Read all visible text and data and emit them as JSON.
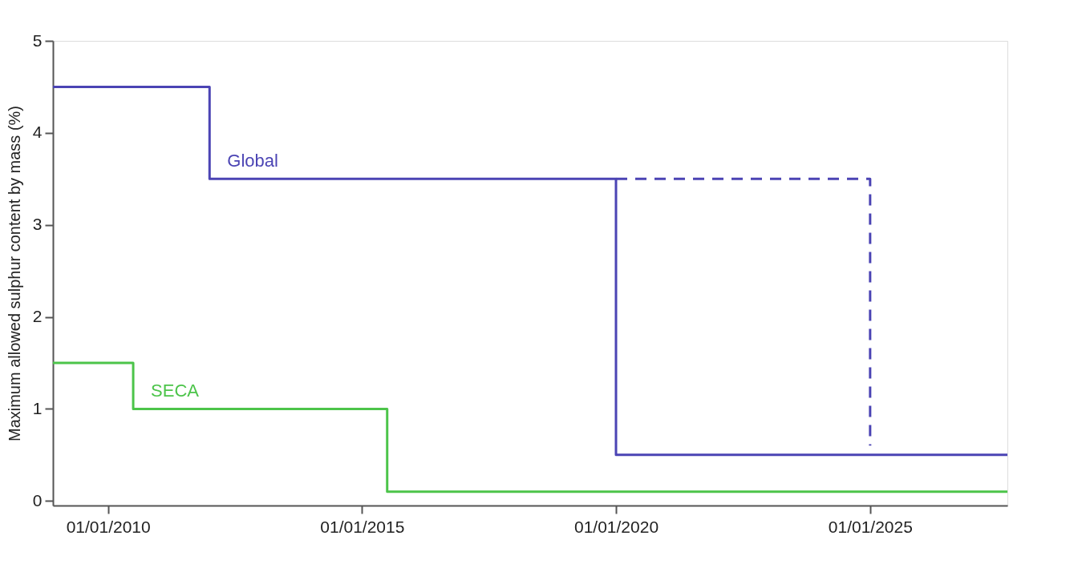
{
  "chart_data": {
    "type": "step",
    "ylabel": "Maximum allowed sulphur content by mass (%)",
    "xlim": [
      "2008-12-01",
      "2027-09-15"
    ],
    "xticks": [
      {
        "value": "2010-01-01",
        "label": "01/01/2010"
      },
      {
        "value": "2015-01-01",
        "label": "01/01/2015"
      },
      {
        "value": "2020-01-01",
        "label": "01/01/2020"
      },
      {
        "value": "2025-01-01",
        "label": "01/01/2025"
      }
    ],
    "ylim": [
      -0.05,
      5
    ],
    "yticks": [
      0,
      1,
      2,
      3,
      4,
      5
    ],
    "grid": false,
    "series": [
      {
        "name": "Global",
        "color": "#4b44b4",
        "line_style": "solid",
        "x": [
          "2008-12-01",
          "2012-01-01",
          "2020-01-01",
          "2027-09-15"
        ],
        "values": [
          4.5,
          3.5,
          0.5,
          0.5
        ]
      },
      {
        "color": "#4b44b4",
        "line_style": "dashed",
        "x": [
          "2020-01-01",
          "2025-01-01"
        ],
        "values": [
          3.5,
          0.6
        ]
      },
      {
        "name": "SECA",
        "color": "#4cc44a",
        "line_style": "solid",
        "x": [
          "2008-12-01",
          "2010-07-01",
          "2015-07-01",
          "2027-09-15"
        ],
        "values": [
          1.5,
          1.0,
          0.1,
          0.1
        ]
      }
    ]
  }
}
